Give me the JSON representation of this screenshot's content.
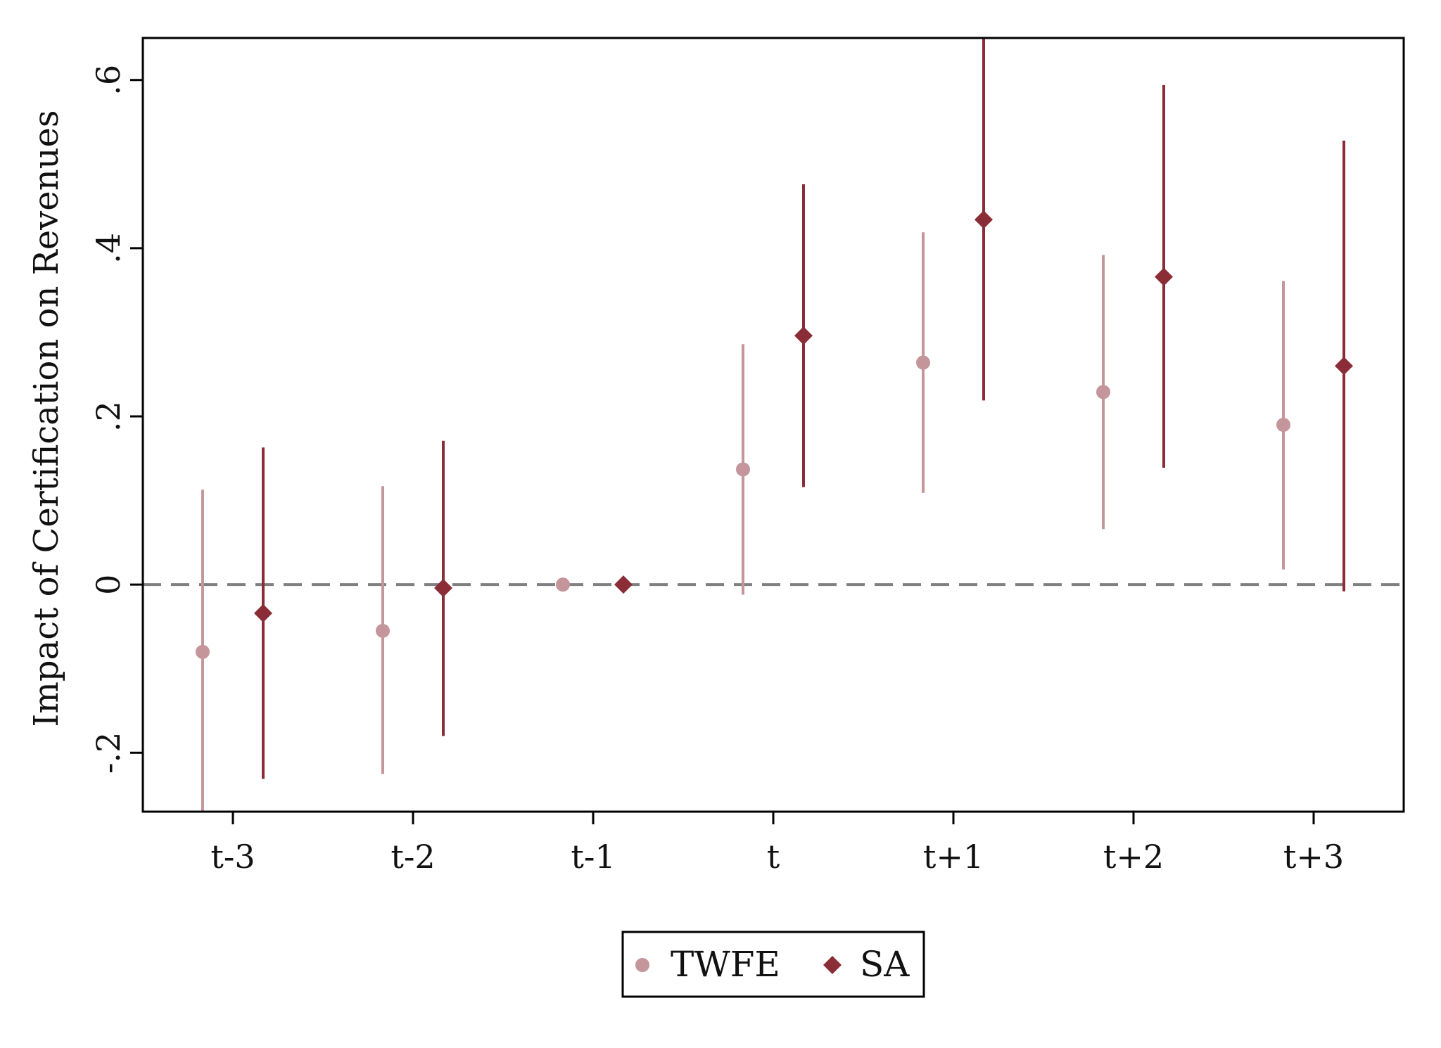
{
  "chart_data": {
    "type": "scatter",
    "subtype": "coefficient plot with confidence intervals",
    "ylabel": "Impact of Certification on Revenues",
    "xlabel": "",
    "categories": [
      "t-3",
      "t-2",
      "t-1",
      "t",
      "t+1",
      "t+2",
      "t+3"
    ],
    "ylim": [
      -0.27,
      0.65
    ],
    "yticks": [
      -0.2,
      0,
      0.2,
      0.4,
      0.6
    ],
    "ytick_labels": [
      "-.2",
      "0",
      ".2",
      ".4",
      ".6"
    ],
    "reference_line": {
      "y": 0,
      "style": "dashed",
      "color": "#808080"
    },
    "grid": false,
    "legend_position": "bottom-center",
    "series": [
      {
        "name": "TWFE",
        "marker": "circle",
        "color": "#c4959a",
        "values": [
          -0.08,
          -0.055,
          0.0,
          0.137,
          0.264,
          0.229,
          0.19
        ],
        "ci_low": [
          -0.27,
          -0.225,
          0.0,
          -0.012,
          0.109,
          0.066,
          0.018
        ],
        "ci_high": [
          0.113,
          0.117,
          0.0,
          0.286,
          0.419,
          0.392,
          0.361
        ]
      },
      {
        "name": "SA",
        "marker": "diamond",
        "color": "#8b2d36",
        "values": [
          -0.034,
          -0.004,
          0.0,
          0.296,
          0.434,
          0.366,
          0.26
        ],
        "ci_low": [
          -0.231,
          -0.18,
          0.0,
          0.116,
          0.219,
          0.139,
          -0.008
        ],
        "ci_high": [
          0.163,
          0.171,
          0.0,
          0.476,
          0.65,
          0.594,
          0.528
        ]
      }
    ]
  }
}
